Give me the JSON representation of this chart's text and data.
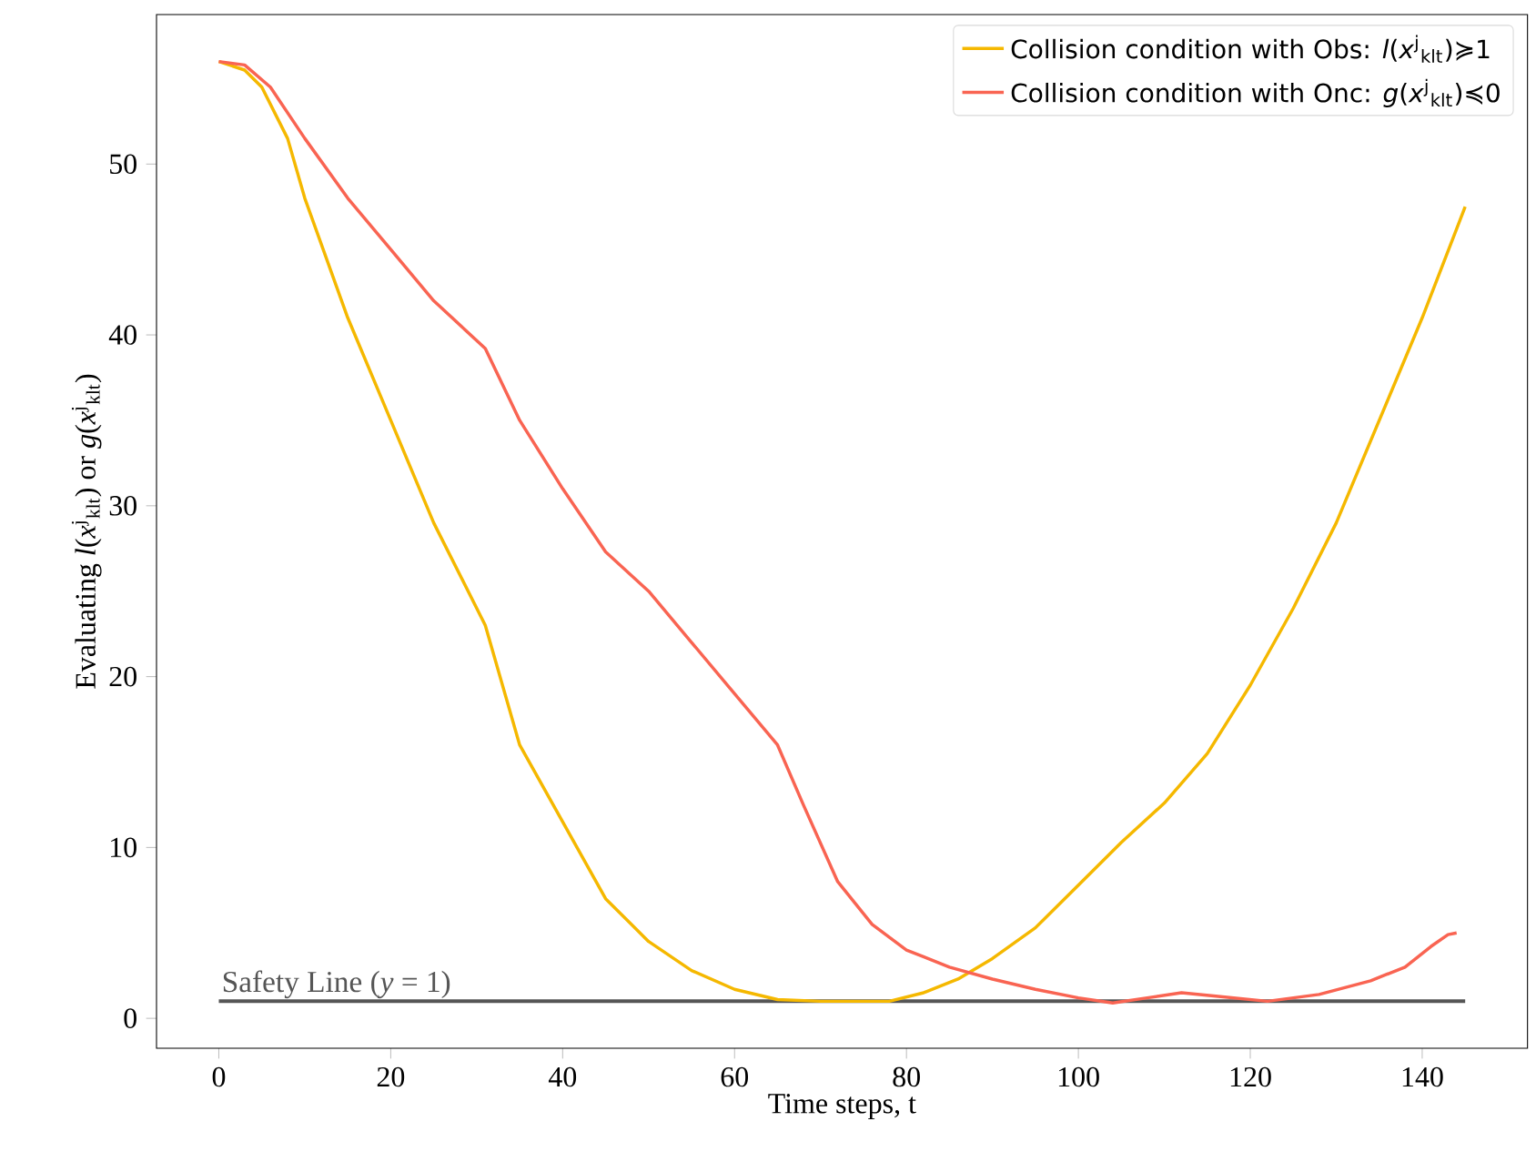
{
  "chart_data": {
    "type": "line",
    "xlabel": "Time steps, t",
    "ylabel": "Evaluating *l*(*x*$^{j}$$_{klt}$) or *g*(*x*$^{j}$$_{klt}$)",
    "xlim": [
      -7.25,
      152.25
    ],
    "ylim": [
      -1.75,
      58.75
    ],
    "xticks": [
      0,
      20,
      40,
      60,
      80,
      100,
      120,
      140
    ],
    "yticks": [
      0,
      10,
      20,
      30,
      40,
      50
    ],
    "legend": "top right",
    "grid": false,
    "marker": "none",
    "line_style": "solid",
    "series": [
      {
        "name": "Collision condition with Obs: *l*(*x*$^{j}$$_{klt}$)≽1",
        "color": "#f5b800",
        "x": [
          0,
          3,
          5,
          8,
          10,
          15,
          20,
          25,
          31,
          35,
          40,
          45,
          50,
          55,
          60,
          65,
          70,
          78,
          82,
          86,
          90,
          95,
          100,
          105,
          110,
          115,
          120,
          125,
          130,
          135,
          140,
          145
        ],
        "values": [
          56,
          55.5,
          54.5,
          51.5,
          48,
          41,
          35,
          29,
          23,
          16,
          11.5,
          7,
          4.5,
          2.8,
          1.7,
          1.1,
          1.0,
          1.0,
          1.5,
          2.3,
          3.5,
          5.3,
          7.8,
          10.3,
          12.6,
          15.5,
          19.5,
          24,
          29,
          35,
          41,
          47.5
        ]
      },
      {
        "name": "Collision condition with Onc: *g*(*x*$^{j}$$_{klt}$)≼0",
        "color": "#f96452",
        "x": [
          0,
          3,
          6,
          10,
          15,
          20,
          25,
          31,
          35,
          40,
          45,
          50,
          55,
          60,
          65,
          68,
          72,
          76,
          80,
          85,
          90,
          95,
          100,
          104,
          108,
          112,
          116,
          122,
          128,
          134,
          138,
          141,
          143,
          144
        ],
        "values": [
          56,
          55.8,
          54.5,
          51.5,
          48,
          45,
          42,
          39.2,
          35,
          31,
          27.3,
          25,
          22,
          19,
          16,
          12.5,
          8,
          5.5,
          4.0,
          3.0,
          2.3,
          1.7,
          1.2,
          0.9,
          1.2,
          1.5,
          1.3,
          1.0,
          1.4,
          2.2,
          3.0,
          4.2,
          4.9,
          5.0
        ]
      }
    ],
    "ref_lines": [
      {
        "axis": "y",
        "value": 1,
        "label": "Safety Line (*y* = 1)",
        "color": "#555555"
      }
    ]
  }
}
